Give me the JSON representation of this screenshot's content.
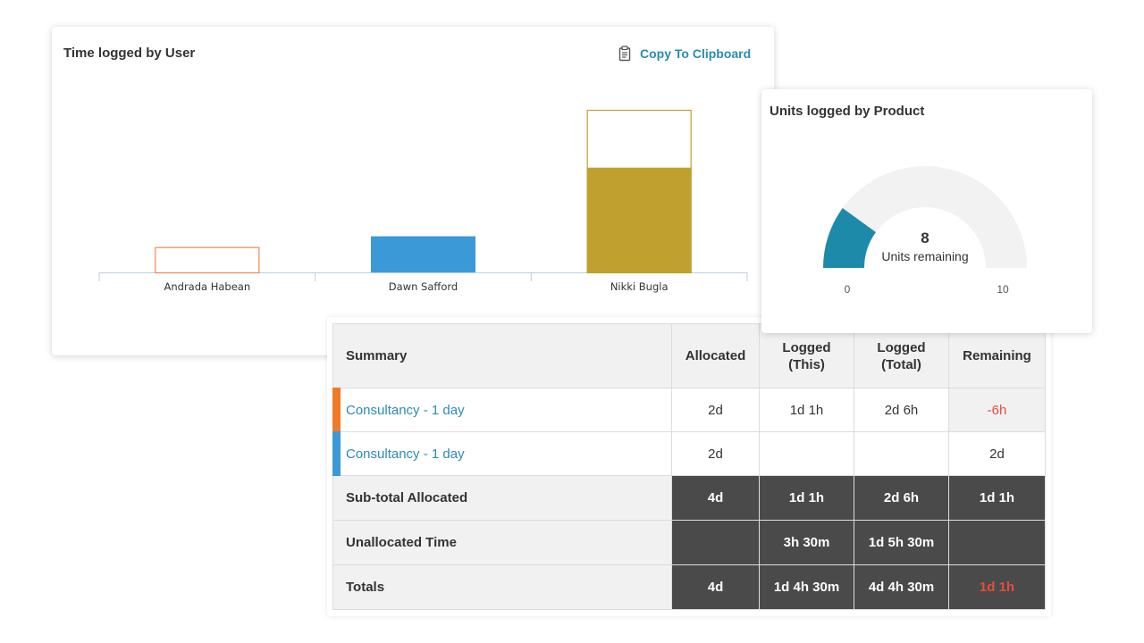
{
  "time_card": {
    "title": "Time logged by User",
    "copy_label": "Copy To Clipboard",
    "copy_icon": "clipboard-icon"
  },
  "chart_data": {
    "type": "bar",
    "categories": [
      "Andrada Habean",
      "Dawn Safford",
      "Nikki Bugla"
    ],
    "ylim": [
      0,
      9
    ],
    "bars": [
      {
        "category": "Andrada Habean",
        "allocated": 1.4,
        "logged": 0,
        "color": "#f08a50"
      },
      {
        "category": "Dawn Safford",
        "allocated": 0,
        "logged": 2.0,
        "color": "#3b99d8"
      },
      {
        "category": "Nikki Bugla",
        "allocated": 9.0,
        "logged": 5.8,
        "color": "#c0a02e"
      }
    ],
    "title": "",
    "xlabel": "",
    "ylabel": ""
  },
  "units_card": {
    "title": "Units logged by Product",
    "gauge": {
      "value": 2,
      "min": 0,
      "max": 10,
      "center_value": "8",
      "center_label": "Units remaining",
      "min_label": "0",
      "max_label": "10",
      "fill_color": "#1e8aaa",
      "track_color": "#f2f2f2"
    }
  },
  "summary": {
    "headers": {
      "summary": "Summary",
      "allocated": "Allocated",
      "logged_this": "Logged\n(This)",
      "logged_total": "Logged\n(Total)",
      "remaining": "Remaining"
    },
    "rows": [
      {
        "label": "Consultancy - 1 day",
        "color": "#f07a28",
        "allocated": "2d",
        "logged_this": "1d 1h",
        "logged_total": "2d 6h",
        "remaining": "-6h"
      },
      {
        "label": "Consultancy - 1 day",
        "color": "#3b99d8",
        "allocated": "2d",
        "logged_this": "",
        "logged_total": "",
        "remaining": "2d"
      }
    ],
    "subtotal": {
      "label": "Sub-total Allocated",
      "allocated": "4d",
      "logged_this": "1d 1h",
      "logged_total": "2d 6h",
      "remaining": "1d 1h"
    },
    "unallocated": {
      "label": "Unallocated Time",
      "allocated": "",
      "logged_this": "3h 30m",
      "logged_total": "1d 5h 30m",
      "remaining": ""
    },
    "totals": {
      "label": "Totals",
      "allocated": "4d",
      "logged_this": "1d 4h 30m",
      "logged_total": "4d 4h 30m",
      "remaining": "1d 1h"
    },
    "negative_color": "#e74c3c"
  }
}
